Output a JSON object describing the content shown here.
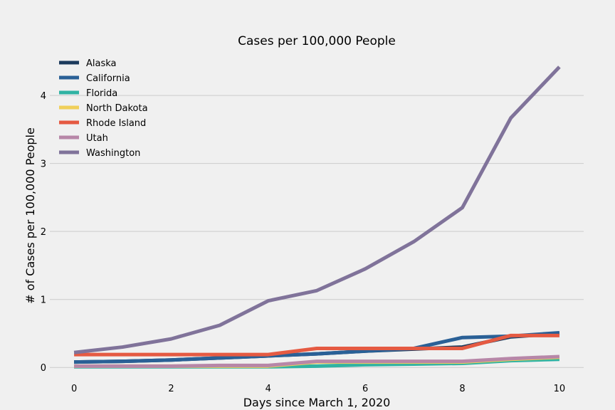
{
  "chart_data": {
    "type": "line",
    "title": "Cases per 100,000 People",
    "xlabel": "Days since March 1, 2020",
    "ylabel": "# of Cases per 100,000 People",
    "xlim": [
      -0.5,
      10.5
    ],
    "ylim": [
      -0.05,
      4.65
    ],
    "x_ticks": [
      0,
      2,
      4,
      6,
      8,
      10
    ],
    "y_ticks": [
      0,
      1,
      2,
      3,
      4
    ],
    "grid": "horizontal",
    "legend_position": "top-left",
    "x": [
      0,
      1,
      2,
      3,
      4,
      5,
      6,
      7,
      8,
      9,
      10
    ],
    "series": [
      {
        "name": "Alaska",
        "color": "#1b3a5c",
        "values": [
          0.08,
          0.09,
          0.11,
          0.14,
          0.17,
          0.2,
          0.24,
          0.27,
          0.3,
          0.45,
          0.5
        ]
      },
      {
        "name": "California",
        "color": "#2a6096",
        "values": [
          0.08,
          0.09,
          0.11,
          0.14,
          0.17,
          0.2,
          0.24,
          0.28,
          0.44,
          0.46,
          0.51
        ]
      },
      {
        "name": "Florida",
        "color": "#30b3a3",
        "values": [
          0.01,
          0.01,
          0.01,
          0.01,
          0.01,
          0.02,
          0.04,
          0.05,
          0.06,
          0.1,
          0.12
        ]
      },
      {
        "name": "North Dakota",
        "color": "#f0cf5a",
        "values": [
          0.02,
          0.02,
          0.02,
          0.02,
          0.02,
          0.08,
          0.08,
          0.08,
          0.08,
          0.12,
          0.15
        ]
      },
      {
        "name": "Rhode Island",
        "color": "#e55a42",
        "values": [
          0.19,
          0.19,
          0.19,
          0.19,
          0.19,
          0.28,
          0.28,
          0.28,
          0.28,
          0.47,
          0.47
        ]
      },
      {
        "name": "Utah",
        "color": "#b787a8",
        "values": [
          0.02,
          0.02,
          0.02,
          0.03,
          0.03,
          0.09,
          0.09,
          0.09,
          0.09,
          0.13,
          0.16
        ]
      },
      {
        "name": "Washington",
        "color": "#80739a",
        "values": [
          0.22,
          0.3,
          0.42,
          0.62,
          0.98,
          1.13,
          1.45,
          1.85,
          2.35,
          3.67,
          4.42
        ]
      }
    ]
  }
}
